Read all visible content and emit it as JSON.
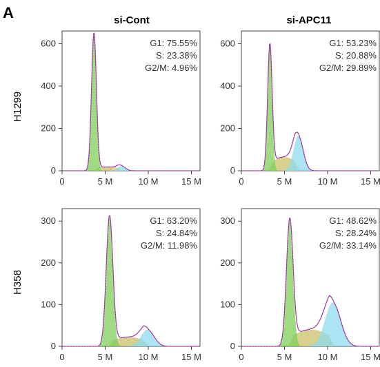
{
  "figure": {
    "panel_label": "A",
    "column_titles": [
      "si-Cont",
      "si-APC11"
    ],
    "row_labels": [
      "H1299",
      "H358"
    ]
  },
  "colors": {
    "g1_fill": "#7dcf5a",
    "s_fill": "#c9c06a",
    "g2m_fill": "#8fdcef",
    "total_line": "#d23ad6",
    "data_line": "#2a6a2a",
    "axis": "#444444"
  },
  "chart_data": [
    {
      "type": "area",
      "row": "H1299",
      "column": "si-Cont",
      "x_ticks": [
        "0",
        "5 M",
        "10 M",
        "15 M"
      ],
      "x_tick_values": [
        0,
        5,
        10,
        15
      ],
      "xlim": [
        0,
        16
      ],
      "y_ticks": [
        "0",
        "200",
        "400",
        "600"
      ],
      "y_tick_values": [
        0,
        200,
        400,
        600
      ],
      "ylim": [
        0,
        660
      ],
      "stats": [
        "G1: 75.55%",
        "S: 23.38%",
        "G2/M: 4.96%"
      ],
      "g1_peak": {
        "x": 3.7,
        "height": 650,
        "sd": 0.28
      },
      "g2m_peak": {
        "x": 6.9,
        "height": 22,
        "sd": 0.45
      },
      "s_level": 18
    },
    {
      "type": "area",
      "row": "H1299",
      "column": "si-APC11",
      "x_ticks": [
        "0",
        "5 M",
        "10 M",
        "15 M"
      ],
      "x_tick_values": [
        0,
        5,
        10,
        15
      ],
      "xlim": [
        0,
        16
      ],
      "y_ticks": [
        "0",
        "200",
        "400",
        "600"
      ],
      "y_tick_values": [
        0,
        200,
        400,
        600
      ],
      "ylim": [
        0,
        660
      ],
      "stats": [
        "G1: 53.23%",
        "S: 20.88%",
        "G2/M: 29.89%"
      ],
      "g1_peak": {
        "x": 3.3,
        "height": 590,
        "sd": 0.26
      },
      "g2m_peak": {
        "x": 6.6,
        "height": 165,
        "sd": 0.55
      },
      "s_level": 65
    },
    {
      "type": "area",
      "row": "H358",
      "column": "si-Cont",
      "x_ticks": [
        "0",
        "5 M",
        "10 M",
        "15 M"
      ],
      "x_tick_values": [
        0,
        5,
        10,
        15
      ],
      "xlim": [
        0,
        16
      ],
      "y_ticks": [
        "0",
        "100",
        "200",
        "300"
      ],
      "y_tick_values": [
        0,
        100,
        200,
        300
      ],
      "ylim": [
        0,
        330
      ],
      "stats": [
        "G1: 63.20%",
        "S: 24.84%",
        "G2/M: 11.98%"
      ],
      "g1_peak": {
        "x": 5.5,
        "height": 310,
        "sd": 0.38
      },
      "g2m_peak": {
        "x": 9.9,
        "height": 40,
        "sd": 0.75
      },
      "s_level": 22
    },
    {
      "type": "area",
      "row": "H358",
      "column": "si-APC11",
      "x_ticks": [
        "0",
        "5 M",
        "10 M",
        "15 M"
      ],
      "x_tick_values": [
        0,
        5,
        10,
        15
      ],
      "xlim": [
        0,
        16
      ],
      "y_ticks": [
        "0",
        "100",
        "200",
        "300"
      ],
      "y_tick_values": [
        0,
        100,
        200,
        300
      ],
      "ylim": [
        0,
        330
      ],
      "stats": [
        "G1: 48.62%",
        "S: 28.24%",
        "G2/M: 33.14%"
      ],
      "g1_peak": {
        "x": 5.6,
        "height": 300,
        "sd": 0.38
      },
      "g2m_peak": {
        "x": 10.6,
        "height": 105,
        "sd": 0.9
      },
      "s_level": 40
    }
  ]
}
